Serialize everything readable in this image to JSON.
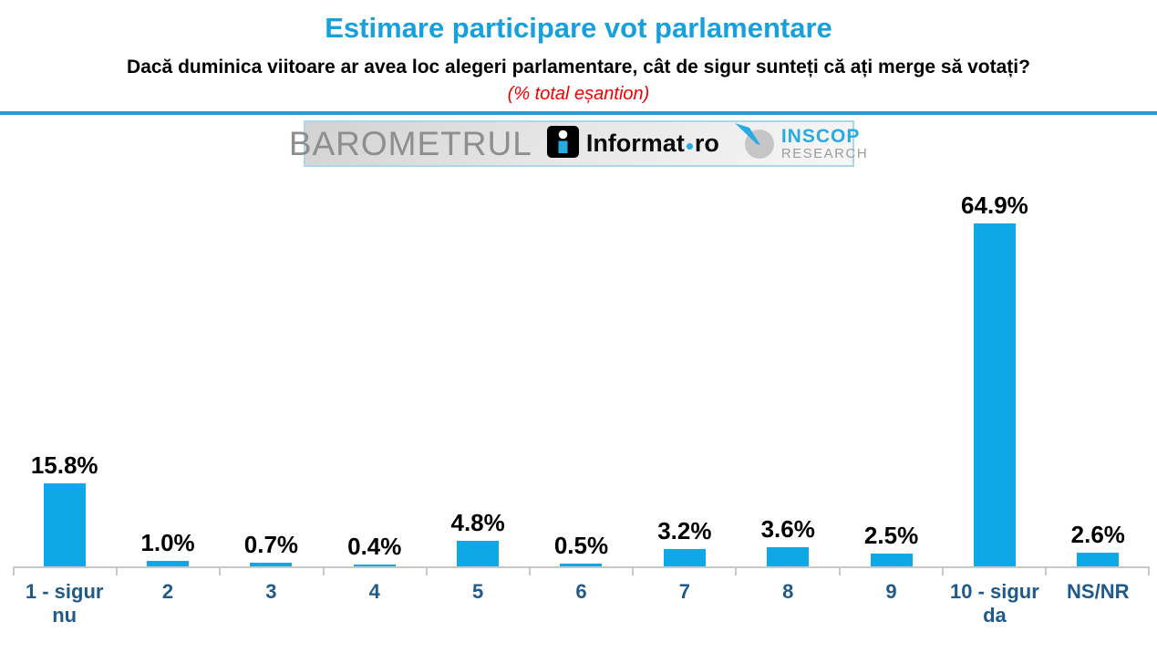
{
  "header": {
    "title": "Estimare participare vot parlamentare",
    "question": "Dacă duminica viitoare ar avea loc alegeri parlamentare, cât de sigur sunteți că ați merge să votați?",
    "sample_note": "(% total eșantion)"
  },
  "banner": {
    "barometrul": "BAROMETRUL",
    "informat_name": "Informat",
    "informat_tld": "ro",
    "inscop_name": "INSCOP",
    "inscop_sub": "RESEARCH"
  },
  "chart_data": {
    "type": "bar",
    "title": "Estimare participare vot parlamentare",
    "subtitle": "Dacă duminica viitoare ar avea loc alegeri parlamentare, cât de sigur sunteți că ați merge să votați?",
    "note": "(% total eșantion)",
    "categories": [
      "1 - sigur nu",
      "2",
      "3",
      "4",
      "5",
      "6",
      "7",
      "8",
      "9",
      "10 - sigur da",
      "NS/NR"
    ],
    "values": [
      15.8,
      1.0,
      0.7,
      0.4,
      4.8,
      0.5,
      3.2,
      3.6,
      2.5,
      64.9,
      2.6
    ],
    "labels": [
      "15.8%",
      "1.0%",
      "0.7%",
      "0.4%",
      "4.8%",
      "0.5%",
      "3.2%",
      "3.6%",
      "2.5%",
      "64.9%",
      "2.6%"
    ],
    "ylim": [
      0,
      74.8
    ],
    "xlabel": "",
    "ylabel": "",
    "grid": false,
    "legend_position": "none",
    "data_labels_shown": true
  },
  "colors": {
    "accent_title": "#17A0DE",
    "bar": "#0DA8E5",
    "header_rule": "#2D99D2",
    "category_label": "#1F5A8A",
    "note_red": "#F00000",
    "axis_gray": "#C8C8C8",
    "banner_border": "#ABD7EA",
    "barometrul_gray": "#8E8E8E",
    "inscop_blue": "#29ABE2",
    "research_gray": "#9C9C9C",
    "value_label": "#000000"
  }
}
